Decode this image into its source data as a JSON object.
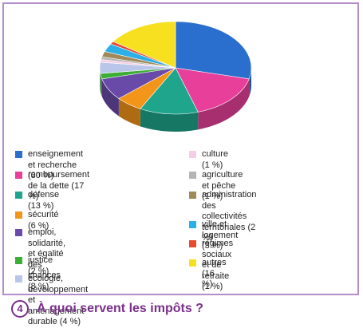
{
  "chart_data": {
    "type": "pie",
    "title": "",
    "slices": [
      {
        "label": "enseignement et recherche (30 %)",
        "value": 30,
        "color": "#2a6fce"
      },
      {
        "label": "remboursement de la dette (17 %)",
        "value": 17,
        "color": "#e8409a"
      },
      {
        "label": "défense (13 %)",
        "value": 13,
        "color": "#1ea58c"
      },
      {
        "label": "sécurité (6 %)",
        "value": 6,
        "color": "#f29518"
      },
      {
        "label": "emploi, solidarité,\net égalité des chances (8 %)",
        "value": 8,
        "color": "#6a4aa8"
      },
      {
        "label": "justice (2 %)",
        "value": 2,
        "color": "#3cae34"
      },
      {
        "label": "écologie, développement\net aménagement durable (4 %)",
        "value": 4,
        "color": "#b9c6ea"
      },
      {
        "label": "culture (1 %)",
        "value": 1,
        "color": "#f6cde4"
      },
      {
        "label": "agriculture et pêche (1 %)",
        "value": 1,
        "color": "#b5b5b5"
      },
      {
        "label": "administration des\ncollectivités territoriales (2 %)",
        "value": 2,
        "color": "#a08a5a"
      },
      {
        "label": "ville et logement (3 %)",
        "value": 3,
        "color": "#2ab0e6"
      },
      {
        "label": "régimes sociaux et de retraite (1 %)",
        "value": 1,
        "color": "#e84a30"
      },
      {
        "label": "autres (16 %)",
        "value": 16,
        "color": "#f7e020"
      }
    ]
  },
  "caption": {
    "number": "4",
    "title": "À quoi servent les impôts ?"
  }
}
